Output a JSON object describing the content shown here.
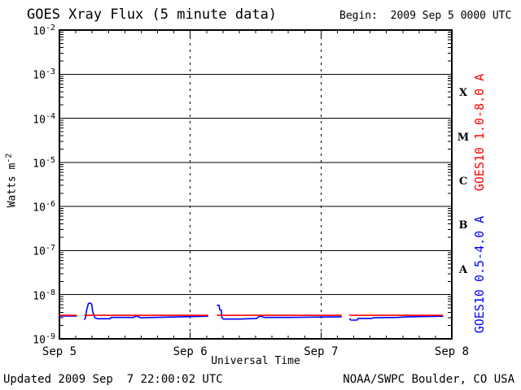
{
  "header": {
    "title": "GOES Xray Flux (5 minute data)",
    "begin_label": "Begin:  2009 Sep 5 0000 UTC"
  },
  "footer": {
    "updated": "Updated 2009 Sep  7 22:00:02 UTC",
    "source": "NOAA/SWPC Boulder, CO USA"
  },
  "axes": {
    "y_axis_label_base": "Watts m",
    "y_axis_label_exponent": "-2",
    "x_axis_label": "Universal Time",
    "y_tick_base": "10",
    "y_tick_exponents": [
      -2,
      -3,
      -4,
      -5,
      -6,
      -7,
      -8,
      -9
    ],
    "x_tick_labels": [
      "Sep 5",
      "Sep 6",
      "Sep 7",
      "Sep 8"
    ]
  },
  "series_labels": {
    "long": "GOES10 1.0-8.0 A",
    "short": "GOES10 0.5-4.0 A"
  },
  "colors": {
    "long_channel": "#ff0000",
    "short_channel": "#0000ff",
    "axis": "#000000",
    "text": "#000000",
    "background": "#ffffff"
  },
  "chart_data": {
    "type": "line",
    "title": "GOES Xray Flux (5 minute data)",
    "xlabel": "Universal Time",
    "ylabel": "Watts m^-2",
    "x_unit": "hours since 2009 Sep 5 0000 UTC",
    "x_range_hours": [
      0,
      72
    ],
    "x_tick_hours": [
      0,
      24,
      48,
      72
    ],
    "x_tick_labels": [
      "Sep 5",
      "Sep 6",
      "Sep 7",
      "Sep 8"
    ],
    "x_minor_tick_interval_hours": 3,
    "y_scale": "log",
    "y_range": [
      1e-09,
      0.01
    ],
    "y_gridline_exponents": [
      -3,
      -4,
      -5,
      -6,
      -7,
      -8
    ],
    "x_gridline_hours": [
      24,
      48
    ],
    "grid": {
      "horizontal": "solid-per-decade",
      "vertical": "dotted-per-day",
      "legend_position": "right-margin-rotated"
    },
    "flare_class_bands": [
      {
        "letter": "X",
        "log_center": -3.5
      },
      {
        "letter": "M",
        "log_center": -4.5
      },
      {
        "letter": "C",
        "log_center": -5.5
      },
      {
        "letter": "B",
        "log_center": -6.5
      },
      {
        "letter": "A",
        "log_center": -7.5
      }
    ],
    "series": [
      {
        "name": "GOES10 1.0-8.0 A",
        "color": "#ff0000",
        "segments": [
          [
            [
              0,
              3.4e-09
            ],
            [
              3.2,
              3.4e-09
            ]
          ],
          [
            [
              4.56,
              3.4e-09
            ],
            [
              27.3,
              3.4e-09
            ]
          ],
          [
            [
              28.9,
              3.4e-09
            ],
            [
              51.8,
              3.4e-09
            ]
          ],
          [
            [
              53.2,
              3.4e-09
            ],
            [
              70.4,
              3.4e-09
            ]
          ]
        ]
      },
      {
        "name": "GOES10 0.5-4.0 A",
        "color": "#0000ff",
        "segments": [
          [
            [
              0,
              3.3e-09
            ],
            [
              3.2,
              3.3e-09
            ]
          ],
          [
            [
              4.56,
              2.7e-09
            ],
            [
              4.8,
              3e-09
            ],
            [
              4.95,
              4.2e-09
            ],
            [
              5.1,
              5e-09
            ],
            [
              5.3,
              6.2e-09
            ],
            [
              5.5,
              6.5e-09
            ],
            [
              5.8,
              6.3e-09
            ],
            [
              5.95,
              6e-09
            ],
            [
              6.1,
              4.2e-09
            ],
            [
              6.5,
              3e-09
            ],
            [
              7.0,
              2.85e-09
            ],
            [
              9.3,
              2.85e-09
            ],
            [
              9.5,
              3.05e-09
            ],
            [
              13.5,
              3.05e-09
            ],
            [
              14.2,
              3.3e-09
            ],
            [
              14.9,
              3e-09
            ],
            [
              20.0,
              3.1e-09
            ],
            [
              27.3,
              3.25e-09
            ]
          ],
          [
            [
              28.9,
              5.8e-09
            ],
            [
              29.3,
              5.75e-09
            ],
            [
              29.4,
              4.6e-09
            ],
            [
              29.7,
              4.5e-09
            ],
            [
              29.8,
              3.05e-09
            ],
            [
              30.1,
              2.8e-09
            ],
            [
              33.0,
              2.8e-09
            ],
            [
              36.2,
              2.9e-09
            ],
            [
              36.8,
              3.3e-09
            ],
            [
              37.6,
              3.05e-09
            ],
            [
              42.0,
              3.05e-09
            ],
            [
              47.0,
              3.1e-09
            ],
            [
              51.8,
              3.15e-09
            ]
          ],
          [
            [
              53.2,
              2.9e-09
            ],
            [
              53.5,
              2.65e-09
            ],
            [
              54.6,
              2.65e-09
            ],
            [
              54.8,
              2.9e-09
            ],
            [
              57.3,
              2.9e-09
            ],
            [
              57.6,
              3e-09
            ],
            [
              62.0,
              3.05e-09
            ],
            [
              64.0,
              3.15e-09
            ],
            [
              70.4,
              3.25e-09
            ]
          ]
        ]
      }
    ]
  }
}
